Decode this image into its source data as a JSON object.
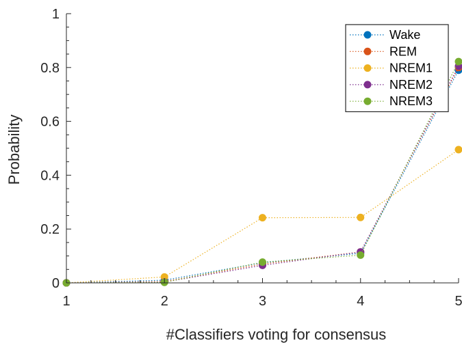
{
  "chart_data": {
    "type": "line",
    "xlabel": "#Classifiers voting for consensus",
    "ylabel": "Probability",
    "xlim": [
      1,
      5
    ],
    "ylim": [
      0,
      1
    ],
    "xticks": [
      "1",
      "2",
      "3",
      "4",
      "5"
    ],
    "yticks": [
      "0",
      "0.2",
      "0.4",
      "0.6",
      "0.8",
      "1"
    ],
    "x": [
      1,
      2,
      3,
      4,
      5
    ],
    "line_style": "dotted",
    "legend_position": "top-right",
    "series": [
      {
        "name": "Wake",
        "color": "#0072BD",
        "values": [
          0.0,
          0.01,
          0.075,
          0.11,
          0.79
        ]
      },
      {
        "name": "REM",
        "color": "#D95319",
        "values": [
          0.0,
          0.005,
          0.07,
          0.115,
          0.8
        ]
      },
      {
        "name": "NREM1",
        "color": "#EDB120",
        "values": [
          0.0,
          0.022,
          0.242,
          0.243,
          0.495
        ]
      },
      {
        "name": "NREM2",
        "color": "#7E2F8E",
        "values": [
          0.0,
          0.003,
          0.065,
          0.115,
          0.805
        ]
      },
      {
        "name": "NREM3",
        "color": "#77AC30",
        "values": [
          0.0,
          0.002,
          0.077,
          0.103,
          0.822
        ]
      }
    ]
  }
}
